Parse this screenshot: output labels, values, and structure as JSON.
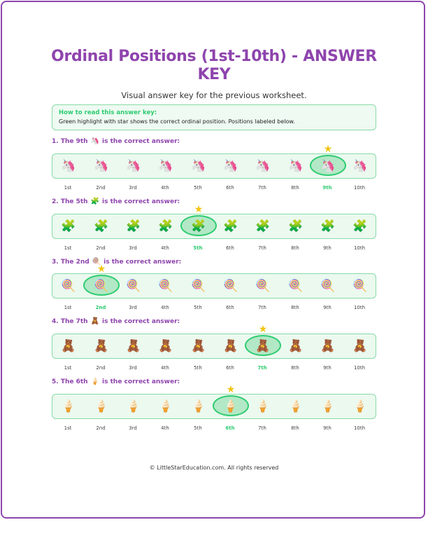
{
  "title": "Ordinal Positions (1st-10th) - ANSWER KEY",
  "subtitle": "Visual answer key for the previous worksheet.",
  "howto": {
    "heading": "How to read this answer key:",
    "text": "Green highlight with star shows the correct ordinal position. Positions labeled below."
  },
  "positions": [
    "1st",
    "2nd",
    "3rd",
    "4th",
    "5th",
    "6th",
    "7th",
    "8th",
    "9th",
    "10th"
  ],
  "colors": {
    "accent_purple": "#8e44ad",
    "highlight_green": "#2ecc71",
    "row_bg": "#ebf9ef",
    "star": "#f1c40f"
  },
  "questions": [
    {
      "label_prefix": "1. The 9th",
      "emoji": "🦄",
      "label_suffix": "is the correct answer:",
      "icon_name": "unicorn-icon",
      "correct_index": 8
    },
    {
      "label_prefix": "2. The 5th",
      "emoji": "🧩",
      "label_suffix": "is the correct answer:",
      "icon_name": "puzzle-piece-icon",
      "correct_index": 4
    },
    {
      "label_prefix": "3. The 2nd",
      "emoji": "🍭",
      "label_suffix": "is the correct answer:",
      "icon_name": "lollipop-icon",
      "correct_index": 1
    },
    {
      "label_prefix": "4. The 7th",
      "emoji": "🧸",
      "label_suffix": "is the correct answer:",
      "icon_name": "teddy-bear-icon",
      "correct_index": 6
    },
    {
      "label_prefix": "5. The 6th",
      "emoji": "🍦",
      "label_suffix": "is the correct answer:",
      "icon_name": "ice-cream-icon",
      "correct_index": 5
    }
  ],
  "star_icon": "★",
  "footer": "© LittleStarEducation.com. All rights reserved"
}
